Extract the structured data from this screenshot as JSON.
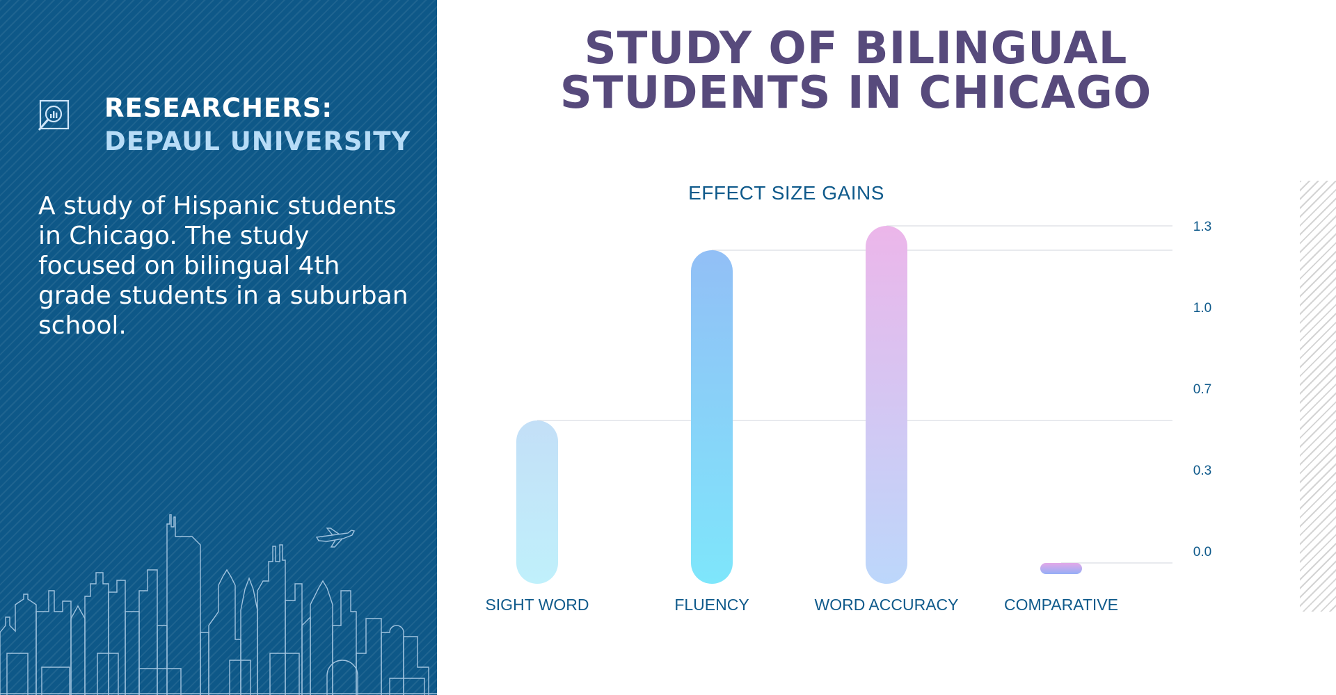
{
  "sidebar": {
    "label": "RESEARCHERS:",
    "name": "DEPAUL UNIVERSITY",
    "description": "A study of Hispanic students in Chicago. The study focused on bilingual 4th grade students in a suburban school.",
    "icon": "magnifier-chart-icon"
  },
  "title": {
    "line1": "STUDY OF BILINGUAL",
    "line2": "STUDENTS IN CHICAGO"
  },
  "colors": {
    "panel": "#0e5888",
    "title": "#574a7c",
    "accent": "#0f5a8b"
  },
  "chart_data": {
    "type": "bar",
    "title": "EFFECT SIZE GAINS",
    "categories": [
      "SIGHT WORD",
      "FLUENCY",
      "WORD ACCURACY",
      "COMPARATIVE"
    ],
    "values": [
      0.5,
      1.2,
      1.3,
      -0.05
    ],
    "y_ticks": [
      "1.3",
      "1.0",
      "0.7",
      "0.3",
      "0.0"
    ],
    "ylim": [
      -0.05,
      1.3
    ],
    "grid": false,
    "bar_colors": [
      [
        "#c3dff7",
        "#c0f0fb"
      ],
      [
        "#92bff6",
        "#7ee6fb"
      ],
      [
        "#ecb6ea",
        "#bcd7fb"
      ],
      [
        "#e3a8e8",
        "#95aef6"
      ]
    ]
  }
}
